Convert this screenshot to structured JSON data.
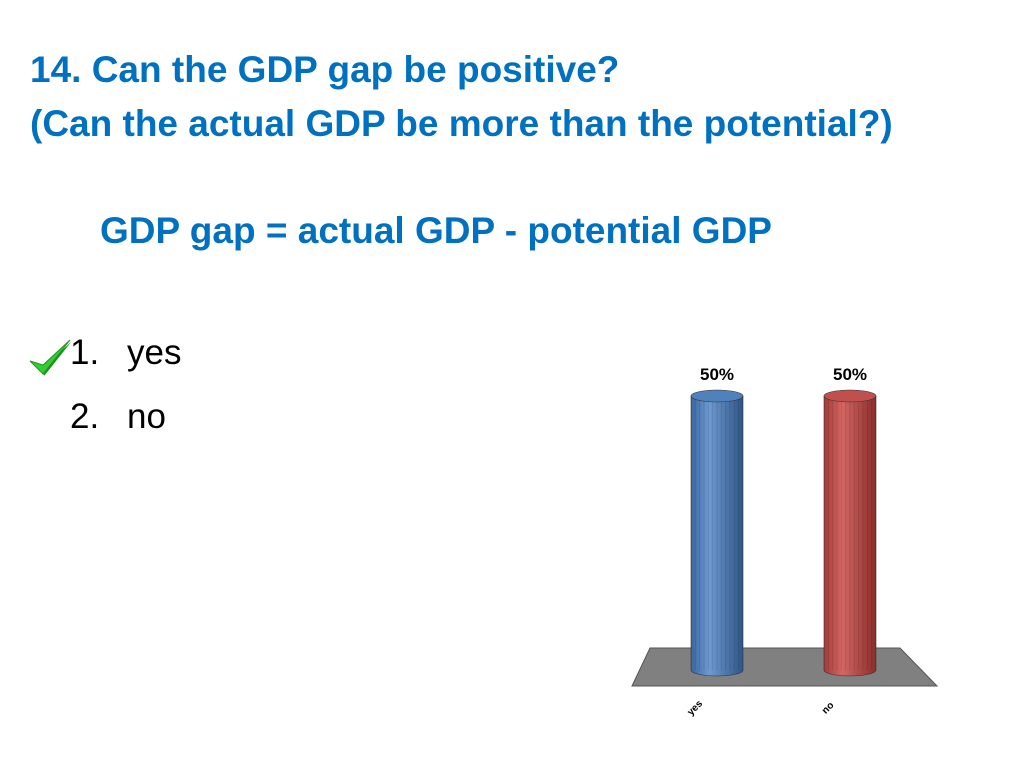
{
  "slide": {
    "title_line1": "14. Can the GDP gap be positive?",
    "title_line2": "(Can the actual GDP be more than the potential?)",
    "formula": "GDP gap = actual GDP - potential GDP",
    "answers": [
      {
        "number": "1.",
        "label": "yes",
        "correct": true
      },
      {
        "number": "2.",
        "label": "no",
        "correct": false
      }
    ],
    "check_icon": "checkmark-icon",
    "colors": {
      "title": "#0070C0",
      "check": "#33CC33"
    }
  },
  "chart_data": {
    "type": "bar",
    "style": "3d-cylinder",
    "categories": [
      "yes",
      "no"
    ],
    "values": [
      50,
      50
    ],
    "data_labels": [
      "50%",
      "50%"
    ],
    "colors": [
      "#4F81BD",
      "#C0504D"
    ],
    "ylim": [
      0,
      50
    ],
    "grid": false,
    "legend": "none",
    "floor_color": "#808080"
  }
}
